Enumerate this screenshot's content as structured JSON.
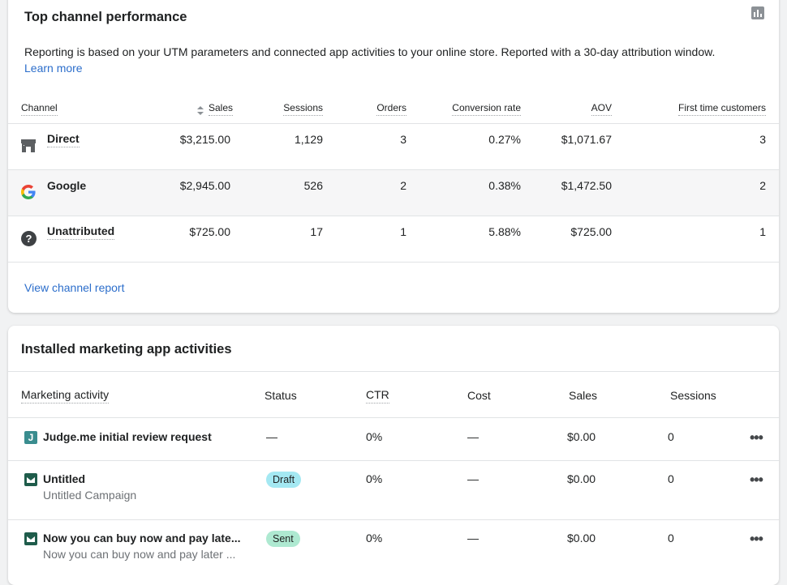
{
  "channel_card": {
    "title": "Top channel performance",
    "description": "Reporting is based on your UTM parameters and connected app activities to your online store. Reported with a 30-day attribution window.",
    "learn_more": "Learn more",
    "headers": {
      "channel": "Channel",
      "sales": "Sales",
      "sessions": "Sessions",
      "orders": "Orders",
      "conversion_rate": "Conversion rate",
      "aov": "AOV",
      "first_time_customers": "First time customers"
    },
    "rows": [
      {
        "name": "Direct",
        "icon": "store-icon",
        "sales": "$3,215.00",
        "sessions": "1,129",
        "orders": "3",
        "conversion_rate": "0.27%",
        "aov": "$1,071.67",
        "first_time_customers": "3"
      },
      {
        "name": "Google",
        "icon": "google-icon",
        "sales": "$2,945.00",
        "sessions": "526",
        "orders": "2",
        "conversion_rate": "0.38%",
        "aov": "$1,472.50",
        "first_time_customers": "2"
      },
      {
        "name": "Unattributed",
        "icon": "question-icon",
        "sales": "$725.00",
        "sessions": "17",
        "orders": "1",
        "conversion_rate": "5.88%",
        "aov": "$725.00",
        "first_time_customers": "1"
      }
    ],
    "view_report": "View channel report",
    "chart_icon": "bar-chart-icon"
  },
  "activities_card": {
    "title": "Installed marketing app activities",
    "headers": {
      "activity": "Marketing activity",
      "status": "Status",
      "ctr": "CTR",
      "cost": "Cost",
      "sales": "Sales",
      "sessions": "Sessions"
    },
    "rows": [
      {
        "name": "Judge.me initial review request",
        "subtitle": "",
        "icon": "judgeme-icon",
        "status": "—",
        "ctr": "0%",
        "cost": "—",
        "sales": "$0.00",
        "sessions": "0",
        "more": "•••"
      },
      {
        "name": "Untitled",
        "subtitle": "Untitled Campaign",
        "icon": "email-icon",
        "status": "Draft",
        "ctr": "0%",
        "cost": "—",
        "sales": "$0.00",
        "sessions": "0",
        "more": "•••"
      },
      {
        "name": "Now you can buy now and pay late...",
        "subtitle": "Now you can buy now and pay later ...",
        "icon": "email-icon",
        "status": "Sent",
        "ctr": "0%",
        "cost": "—",
        "sales": "$0.00",
        "sessions": "0",
        "more": "•••"
      }
    ],
    "judgeme_letter": "J",
    "badge_colors": {
      "draft": "#a4e8f2",
      "sent": "#aee9d1"
    }
  }
}
